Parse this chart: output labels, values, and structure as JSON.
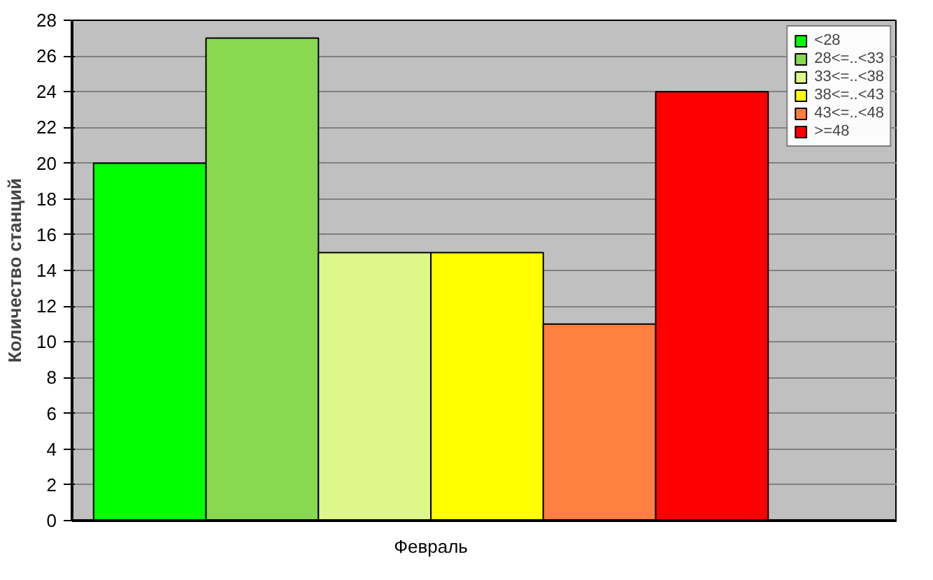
{
  "chart_data": {
    "type": "bar",
    "ylabel": "Количество станций",
    "categories": [
      "Февраль"
    ],
    "series": [
      {
        "name": "<28",
        "color": "#00ff00",
        "values": [
          20
        ]
      },
      {
        "name": "28<=..<33",
        "color": "#88d850",
        "values": [
          27
        ]
      },
      {
        "name": "33<=..<38",
        "color": "#ddf888",
        "values": [
          15
        ]
      },
      {
        "name": "38<=..<43",
        "color": "#ffff00",
        "values": [
          15
        ]
      },
      {
        "name": "43<=..<48",
        "color": "#ff8040",
        "values": [
          11
        ]
      },
      {
        "name": ">=48",
        "color": "#ff0000",
        "values": [
          24
        ]
      }
    ],
    "ylim": [
      0,
      28
    ],
    "yticks": [
      0,
      2,
      4,
      6,
      8,
      10,
      12,
      14,
      16,
      18,
      20,
      22,
      24,
      26,
      28
    ],
    "grid": "y",
    "legend": "top right"
  }
}
